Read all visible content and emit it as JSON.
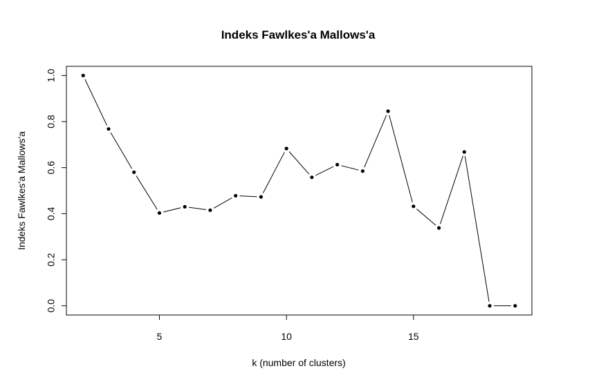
{
  "chart_data": {
    "type": "line",
    "title": "Indeks Fawlkes'a Mallows'a",
    "xlabel": "k (number of clusters)",
    "ylabel": "Indeks Fawlkes'a Mallows'a",
    "xlim": [
      1.34,
      19.66
    ],
    "ylim": [
      -0.04,
      1.04
    ],
    "x_ticks": [
      5,
      10,
      15
    ],
    "y_ticks": [
      0.0,
      0.2,
      0.4,
      0.6,
      0.8,
      1.0
    ],
    "y_tick_labels": [
      "0.0",
      "0.2",
      "0.4",
      "0.6",
      "0.8",
      "1.0"
    ],
    "grid": false,
    "series": [
      {
        "x": [
          2,
          3,
          4,
          5,
          6,
          7,
          8,
          9,
          10,
          11,
          12,
          13,
          14,
          15,
          16,
          17,
          18,
          19
        ],
        "values": [
          1.0,
          0.768,
          0.58,
          0.403,
          0.43,
          0.415,
          0.478,
          0.473,
          0.683,
          0.558,
          0.613,
          0.585,
          0.845,
          0.432,
          0.338,
          0.668,
          0.0,
          0.0
        ]
      }
    ],
    "colors": {
      "line": "#000000",
      "marker": "#000000",
      "axes": "#000000"
    }
  }
}
